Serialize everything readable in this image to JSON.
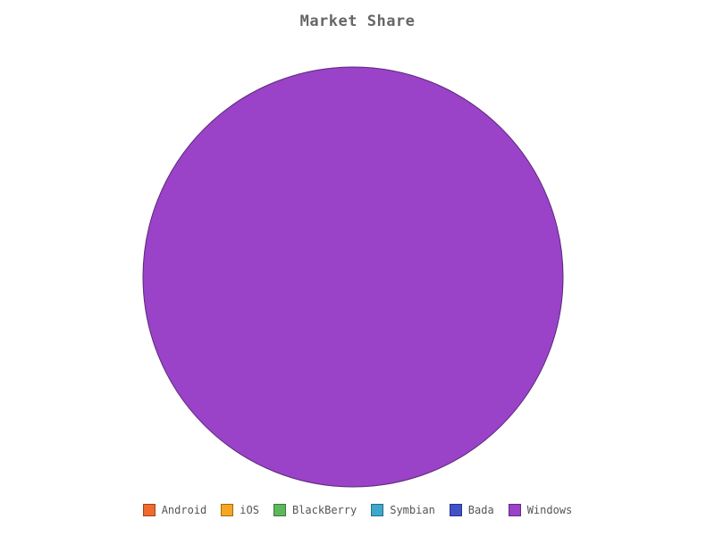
{
  "chart_data": {
    "type": "pie",
    "title": "Market Share",
    "categories": [
      "Android",
      "iOS",
      "BlackBerry",
      "Symbian",
      "Bada",
      "Windows"
    ],
    "values": [
      0,
      0,
      0,
      0,
      0,
      100
    ],
    "colors": [
      "#f06a2c",
      "#f5a623",
      "#5cb85c",
      "#3ea8cc",
      "#4051c9",
      "#9a42c8"
    ],
    "legend_position": "bottom"
  }
}
